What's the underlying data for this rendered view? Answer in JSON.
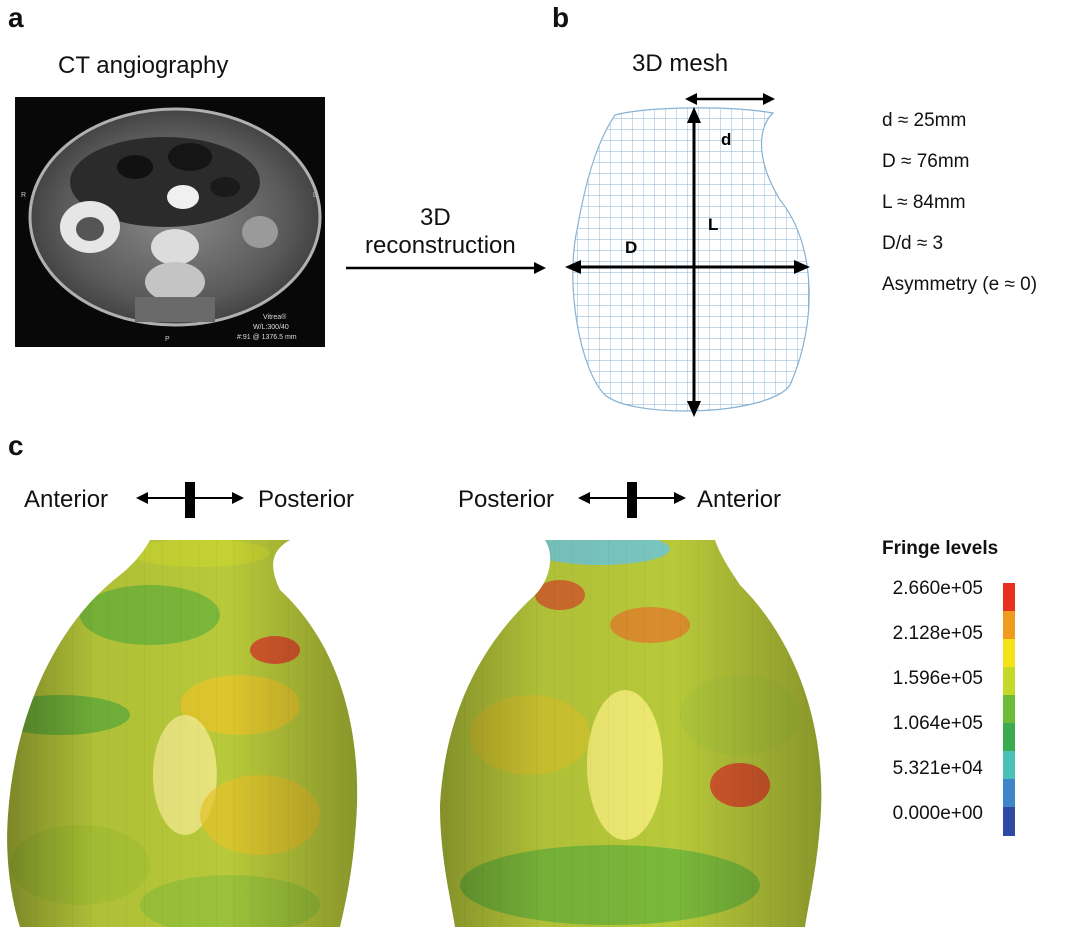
{
  "panels": {
    "a": {
      "letter": "a",
      "title": "CT angiography",
      "ct_overlay": [
        "Vitrea®",
        "W/L:300/40",
        "#:91 @ 1376.5 mm"
      ],
      "ct_markers": {
        "right": "R",
        "left": "L",
        "posterior": "P"
      }
    },
    "arrow_label": {
      "line1": "3D",
      "line2": "reconstruction"
    },
    "b": {
      "letter": "b",
      "title": "3D mesh",
      "dim_labels": {
        "d": "d",
        "L": "L",
        "D": "D"
      },
      "measurements": [
        "d ≈ 25mm",
        "D ≈ 76mm",
        "L ≈ 84mm",
        "D/d ≈ 3",
        "Asymmetry (e ≈ 0)"
      ]
    },
    "c": {
      "letter": "c",
      "left_view": {
        "left": "Anterior",
        "right": "Posterior"
      },
      "right_view": {
        "left": "Posterior",
        "right": "Anterior"
      },
      "legend": {
        "title": "Fringe levels",
        "labels": [
          "2.660e+05",
          "2.128e+05",
          "1.596e+05",
          "1.064e+05",
          "5.321e+04",
          "0.000e+00"
        ],
        "colors": [
          "#e8301f",
          "#f09a1e",
          "#f6e21a",
          "#c7d928",
          "#6cbd35",
          "#3aab4f",
          "#49c0b8",
          "#3e86c8",
          "#2f4aa4"
        ]
      }
    }
  }
}
